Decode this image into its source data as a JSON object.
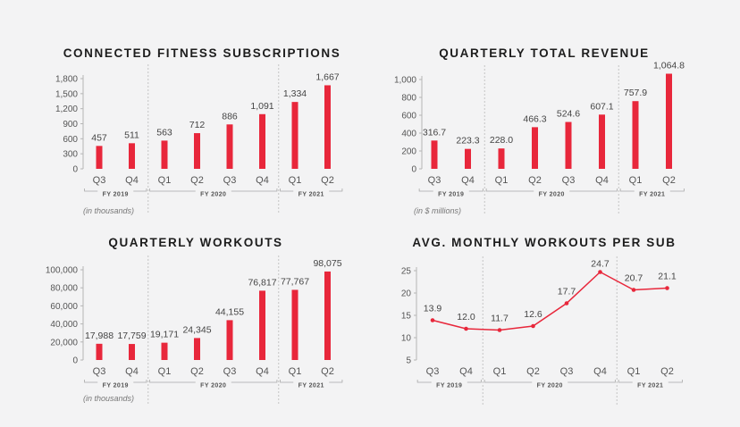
{
  "colors": {
    "accent": "#e8273b",
    "axis": "#b5b5b5",
    "text": "#444444"
  },
  "chart_data": [
    {
      "type": "bar",
      "title": "CONNECTED FITNESS SUBSCRIPTIONS",
      "note": "(in thousands)",
      "categories": [
        "Q3",
        "Q4",
        "Q1",
        "Q2",
        "Q3",
        "Q4",
        "Q1",
        "Q2"
      ],
      "values": [
        457,
        511,
        563,
        712,
        886,
        1091,
        1334,
        1667
      ],
      "labels": [
        "457",
        "511",
        "563",
        "712",
        "886",
        "1,091",
        "1,334",
        "1,667"
      ],
      "ylim": [
        0,
        1800
      ],
      "yticks": [
        0,
        300,
        600,
        900,
        1200,
        1500,
        1800
      ],
      "ytick_labels": [
        "0",
        "300",
        "600",
        "900",
        "1,200",
        "1,500",
        "1,800"
      ],
      "groups": [
        {
          "label": "FY 2019",
          "start": 0,
          "end": 1
        },
        {
          "label": "FY 2020",
          "start": 2,
          "end": 5
        },
        {
          "label": "FY 2021",
          "start": 6,
          "end": 7
        }
      ]
    },
    {
      "type": "bar",
      "title": "QUARTERLY TOTAL REVENUE",
      "note": "(in $ millions)",
      "categories": [
        "Q3",
        "Q4",
        "Q1",
        "Q2",
        "Q3",
        "Q4",
        "Q1",
        "Q2"
      ],
      "values": [
        316.7,
        223.3,
        228.0,
        466.3,
        524.6,
        607.1,
        757.9,
        1064.8
      ],
      "labels": [
        "316.7",
        "223.3",
        "228.0",
        "466.3",
        "524.6",
        "607.1",
        "757.9",
        "1,064.8"
      ],
      "ylim": [
        0,
        1000
      ],
      "yticks": [
        0,
        200,
        400,
        600,
        800,
        1000
      ],
      "ytick_labels": [
        "0",
        "200",
        "400",
        "600",
        "800",
        "1,000"
      ],
      "groups": [
        {
          "label": "FY 2019",
          "start": 0,
          "end": 1
        },
        {
          "label": "FY 2020",
          "start": 2,
          "end": 5
        },
        {
          "label": "FY 2021",
          "start": 6,
          "end": 7
        }
      ]
    },
    {
      "type": "bar",
      "title": "QUARTERLY WORKOUTS",
      "note": "(in thousands)",
      "categories": [
        "Q3",
        "Q4",
        "Q1",
        "Q2",
        "Q3",
        "Q4",
        "Q1",
        "Q2"
      ],
      "values": [
        17988,
        17759,
        19171,
        24345,
        44155,
        76817,
        77767,
        98075
      ],
      "labels": [
        "17,988",
        "17,759",
        "19,171",
        "24,345",
        "44,155",
        "76,817",
        "77,767",
        "98,075"
      ],
      "ylim": [
        0,
        100000
      ],
      "yticks": [
        0,
        20000,
        40000,
        60000,
        80000,
        100000
      ],
      "ytick_labels": [
        "0",
        "20,000",
        "40,000",
        "60,000",
        "80,000",
        "100,000"
      ],
      "groups": [
        {
          "label": "FY 2019",
          "start": 0,
          "end": 1
        },
        {
          "label": "FY 2020",
          "start": 2,
          "end": 5
        },
        {
          "label": "FY 2021",
          "start": 6,
          "end": 7
        }
      ]
    },
    {
      "type": "line",
      "title": "AVG. MONTHLY WORKOUTS PER SUB",
      "note": "",
      "categories": [
        "Q3",
        "Q4",
        "Q1",
        "Q2",
        "Q3",
        "Q4",
        "Q1",
        "Q2"
      ],
      "values": [
        13.9,
        12.0,
        11.7,
        12.6,
        17.7,
        24.7,
        20.7,
        21.1
      ],
      "labels": [
        "13.9",
        "12.0",
        "11.7",
        "12.6",
        "17.7",
        "24.7",
        "20.7",
        "21.1"
      ],
      "ylim": [
        5,
        25
      ],
      "yticks": [
        5,
        10,
        15,
        20,
        25
      ],
      "ytick_labels": [
        "5",
        "10",
        "15",
        "20",
        "25"
      ],
      "groups": [
        {
          "label": "FY 2019",
          "start": 0,
          "end": 1
        },
        {
          "label": "FY 2020",
          "start": 2,
          "end": 5
        },
        {
          "label": "FY 2021",
          "start": 6,
          "end": 7
        }
      ]
    }
  ]
}
